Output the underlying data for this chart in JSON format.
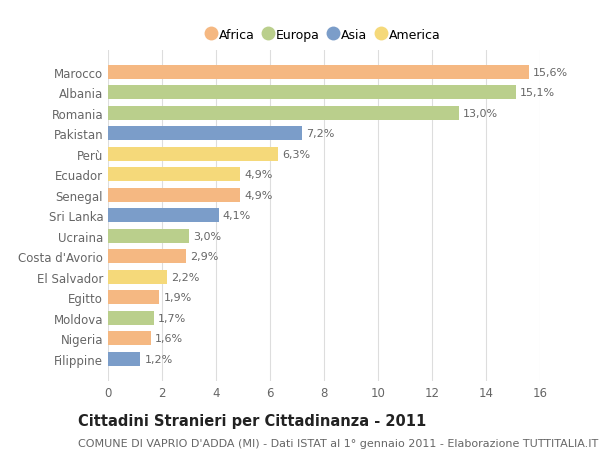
{
  "countries": [
    "Marocco",
    "Albania",
    "Romania",
    "Pakistan",
    "Perù",
    "Ecuador",
    "Senegal",
    "Sri Lanka",
    "Ucraina",
    "Costa d'Avorio",
    "El Salvador",
    "Egitto",
    "Moldova",
    "Nigeria",
    "Filippine"
  ],
  "values": [
    15.6,
    15.1,
    13.0,
    7.2,
    6.3,
    4.9,
    4.9,
    4.1,
    3.0,
    2.9,
    2.2,
    1.9,
    1.7,
    1.6,
    1.2
  ],
  "labels": [
    "15,6%",
    "15,1%",
    "13,0%",
    "7,2%",
    "6,3%",
    "4,9%",
    "4,9%",
    "4,1%",
    "3,0%",
    "2,9%",
    "2,2%",
    "1,9%",
    "1,7%",
    "1,6%",
    "1,2%"
  ],
  "continents": [
    "Africa",
    "Europa",
    "Europa",
    "Asia",
    "America",
    "America",
    "Africa",
    "Asia",
    "Europa",
    "Africa",
    "America",
    "Africa",
    "Europa",
    "Africa",
    "Asia"
  ],
  "colors": {
    "Africa": "#F5B882",
    "Europa": "#BACF8C",
    "Asia": "#7B9DC9",
    "America": "#F5D97A"
  },
  "legend_order": [
    "Africa",
    "Europa",
    "Asia",
    "America"
  ],
  "title": "Cittadini Stranieri per Cittadinanza - 2011",
  "subtitle": "COMUNE DI VAPRIO D'ADDA (MI) - Dati ISTAT al 1° gennaio 2011 - Elaborazione TUTTITALIA.IT",
  "xlim": [
    0,
    16
  ],
  "xticks": [
    0,
    2,
    4,
    6,
    8,
    10,
    12,
    14,
    16
  ],
  "bg_color": "#ffffff",
  "grid_color": "#dddddd",
  "bar_height": 0.68,
  "label_fontsize": 8.0,
  "tick_fontsize": 8.5,
  "title_fontsize": 10.5,
  "subtitle_fontsize": 8.0,
  "text_color": "#666666"
}
